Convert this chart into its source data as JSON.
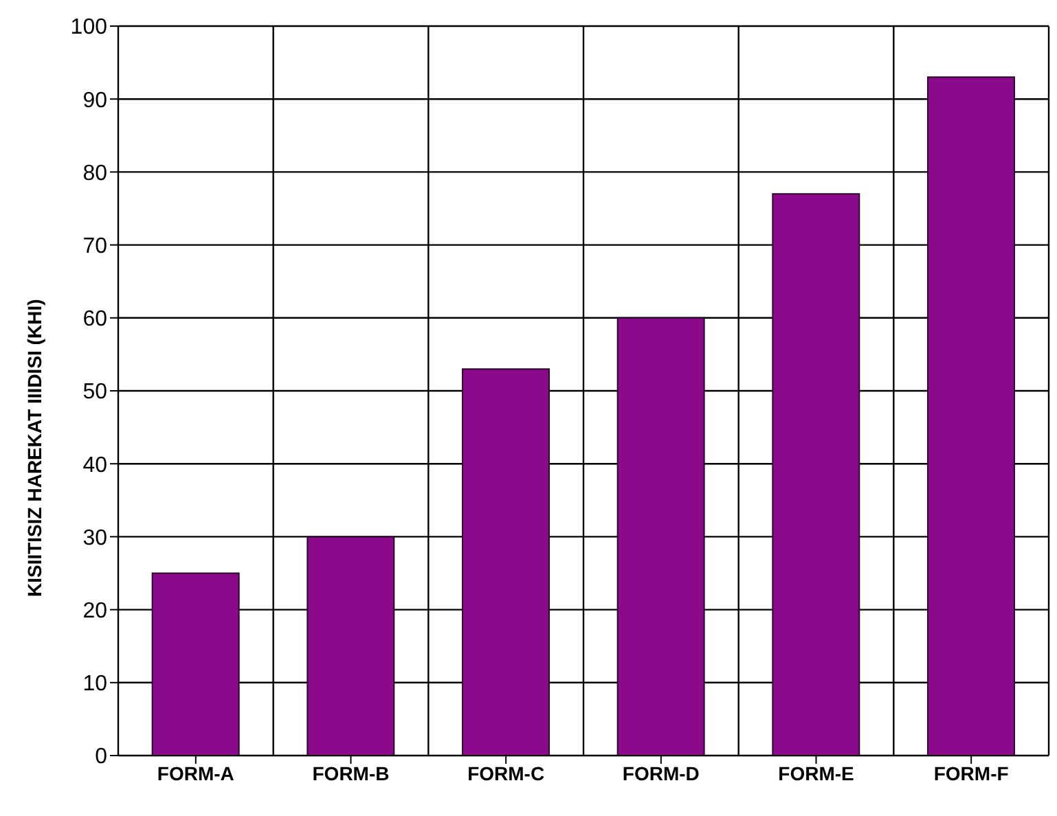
{
  "chart_data": {
    "type": "bar",
    "ylabel": "KISIITISIZ HAREKAT IIIDISI (KHI)",
    "categories": [
      "FORM-A",
      "FORM-B",
      "FORM-C",
      "FORM-D",
      "FORM-E",
      "FORM-F"
    ],
    "values": [
      25,
      30,
      53,
      60,
      77,
      93
    ],
    "color": "#8b0a8b",
    "ylim": [
      0,
      100
    ],
    "yticks": [
      0,
      10,
      20,
      30,
      40,
      50,
      60,
      70,
      80,
      90,
      100
    ],
    "grid": true
  }
}
